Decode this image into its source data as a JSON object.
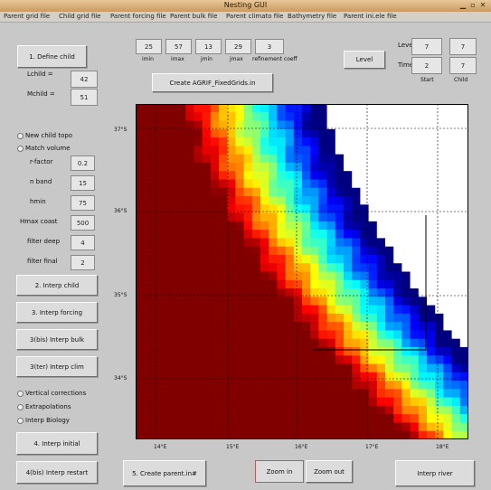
{
  "window": {
    "title": "Nesting GUI"
  },
  "menu": [
    "Parent grid file",
    "Child grid file",
    "Parent forcing file",
    "Parent bulk file",
    "Parent climato file",
    "Bathymetry file",
    "Parent ini.ele file"
  ],
  "define_child_button": "1. Define child",
  "lchild": {
    "label": "Lchild =",
    "value": "42"
  },
  "mchild": {
    "label": "Mchild =",
    "value": "51"
  },
  "parent_indices": [
    {
      "value": "25",
      "label": "imin"
    },
    {
      "value": "57",
      "label": "imax"
    },
    {
      "value": "13",
      "label": "jmin"
    },
    {
      "value": "29",
      "label": "jmax"
    },
    {
      "value": "3",
      "label": "refinement coeff"
    }
  ],
  "create_button": "Create AGRIF_FixedGrids.in",
  "level_button": "Level",
  "start_child": {
    "labels": [
      "Level",
      "Time"
    ],
    "headers": [
      "Start",
      "Child"
    ],
    "values": [
      "7",
      "7",
      "2",
      "7"
    ]
  },
  "options": {
    "new_child_topo": "New child topo",
    "match_volume": "Match volume",
    "rows": [
      {
        "label": "r-factor",
        "value": "0.2"
      },
      {
        "label": "n band",
        "value": "15"
      },
      {
        "label": "hmin",
        "value": "75"
      },
      {
        "label": "Hmax coast",
        "value": "500"
      },
      {
        "label": "filter deep",
        "value": "4"
      },
      {
        "label": "filter final",
        "value": "2"
      }
    ]
  },
  "buttons": {
    "interp_child": "2. Interp child",
    "interp_forcing": "3. Interp forcing",
    "interp_bulk": "3(bis) Interp bulk",
    "interp_climato": "3(ter) Interp clim",
    "interp_initial": "4. Interp initial",
    "interp_restart": "4(bis) Interp restart",
    "create_parent": "5. Create parent.in#",
    "zoom_in": "Zoom in",
    "zoom_out": "Zoom out",
    "interp_river": "Interp river"
  },
  "radios_lower": [
    "Vertical corrections",
    "Extrapolations",
    "Interp Biology"
  ],
  "axes": {
    "y_ticks": [
      "37°S",
      "36°S",
      "35°S",
      "34°S"
    ],
    "x_ticks": [
      "14°E",
      "15°E",
      "16°E",
      "17°E",
      "18°E"
    ]
  },
  "colors": {
    "high": "#8b0000",
    "mid": "#ffd200",
    "low": "#0000d0"
  }
}
